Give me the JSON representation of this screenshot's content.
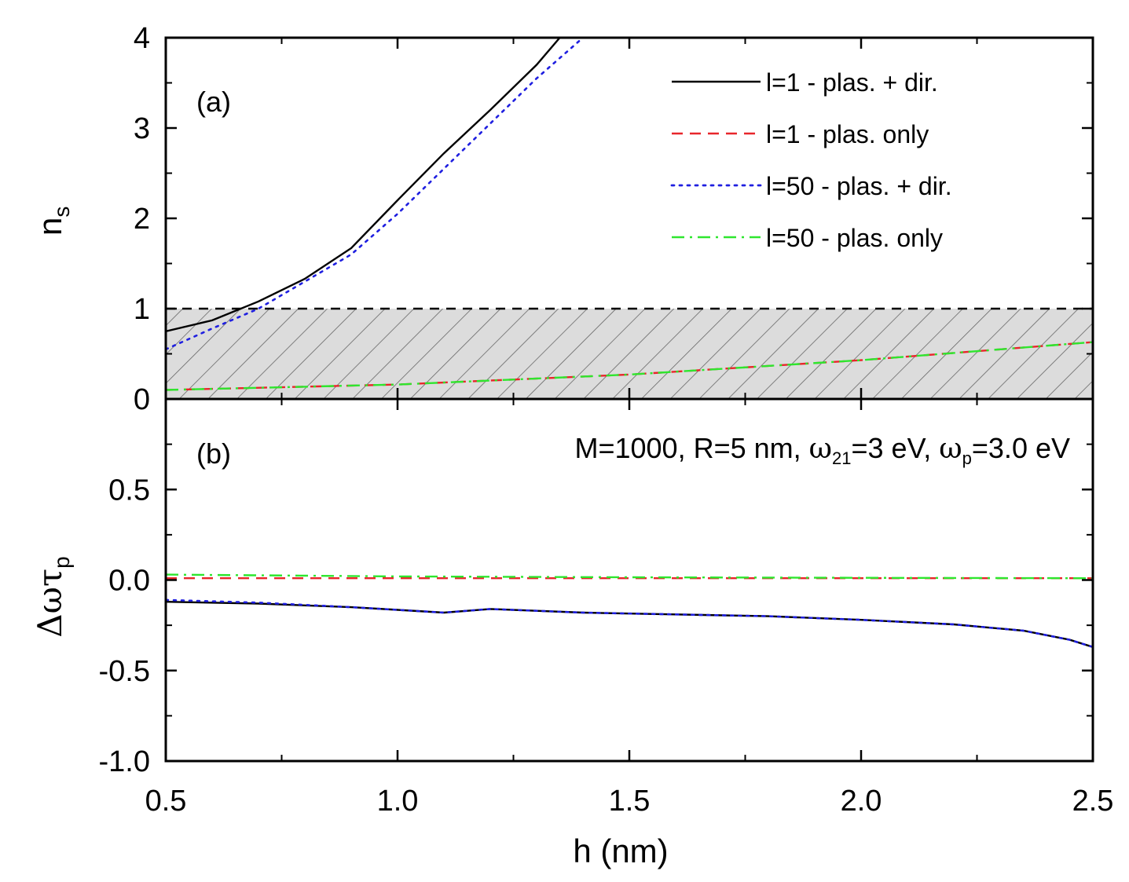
{
  "colors": {
    "black": "#000000",
    "red": "#e8262b",
    "blue": "#1f1fe0",
    "green": "#2ee62e",
    "hatch_fill": "#dcdcdc",
    "hatch_line": "#555555"
  },
  "chart_data": [
    {
      "panel": "a",
      "type": "line",
      "panel_label": "(a)",
      "ylabel": {
        "main": "n",
        "sub": "s"
      },
      "xlim": [
        0.5,
        2.5
      ],
      "ylim": [
        0,
        4
      ],
      "yticks": [
        "0",
        "1",
        "2",
        "3",
        "4"
      ],
      "threshold": {
        "y": 1,
        "style": "dashed",
        "shaded_region": [
          0,
          1
        ],
        "pattern": "hatched"
      },
      "legend_position": "top-right",
      "series": [
        {
          "name": "l=1 - plas. + dir.",
          "style": "solid",
          "color": "#000000",
          "x": [
            0.5,
            0.6,
            0.7,
            0.8,
            0.9,
            1.0,
            1.1,
            1.2,
            1.3,
            1.35
          ],
          "y": [
            0.75,
            0.87,
            1.08,
            1.33,
            1.67,
            2.2,
            2.72,
            3.2,
            3.7,
            4.0
          ]
        },
        {
          "name": "l=1 - plas. only",
          "style": "dashed",
          "color": "#e8262b",
          "x": [
            0.5,
            1.0,
            1.5,
            2.0,
            2.5
          ],
          "y": [
            0.1,
            0.16,
            0.27,
            0.43,
            0.63
          ]
        },
        {
          "name": "l=50 - plas. + dir.",
          "style": "dotted",
          "color": "#1f1fe0",
          "x": [
            0.5,
            0.6,
            0.7,
            0.8,
            0.9,
            1.0,
            1.1,
            1.2,
            1.3,
            1.4
          ],
          "y": [
            0.55,
            0.78,
            1.0,
            1.3,
            1.6,
            2.05,
            2.55,
            3.05,
            3.55,
            4.0
          ]
        },
        {
          "name": "l=50 - plas. only",
          "style": "dash-dot",
          "color": "#2ee62e",
          "x": [
            0.5,
            1.0,
            1.5,
            2.0,
            2.5
          ],
          "y": [
            0.1,
            0.16,
            0.27,
            0.43,
            0.63
          ]
        }
      ]
    },
    {
      "panel": "b",
      "type": "line",
      "panel_label": "(b)",
      "ylabel": "Δωτ",
      "ylabel_sub": "p",
      "annotation": {
        "prefix": "M=1000, R=5 nm, ",
        "omega21_symbol": "ω",
        "omega21_sub": "21",
        "omega21_value": "=3 eV, ",
        "omegap_symbol": "ω",
        "omegap_sub": "p",
        "omegap_value": "=3.0 eV"
      },
      "xlabel": "h (nm)",
      "xlim": [
        0.5,
        2.5
      ],
      "ylim": [
        -1.0,
        1.0
      ],
      "xticks": [
        "0.5",
        "1.0",
        "1.5",
        "2.0",
        "2.5"
      ],
      "yticks": [
        "-1.0",
        "-0.5",
        "0.0",
        "0.5"
      ],
      "series": [
        {
          "name": "l=1 - plas. + dir.",
          "style": "solid",
          "color": "#000000",
          "x": [
            0.5,
            0.7,
            0.9,
            1.0,
            1.1,
            1.2,
            1.4,
            1.6,
            1.8,
            2.0,
            2.2,
            2.35,
            2.45,
            2.5
          ],
          "y": [
            -0.12,
            -0.13,
            -0.15,
            -0.165,
            -0.18,
            -0.16,
            -0.18,
            -0.19,
            -0.2,
            -0.22,
            -0.245,
            -0.28,
            -0.33,
            -0.37
          ]
        },
        {
          "name": "l=1 - plas. only",
          "style": "dashed",
          "color": "#e8262b",
          "x": [
            0.5,
            1.0,
            1.5,
            2.0,
            2.5
          ],
          "y": [
            0.01,
            0.01,
            0.01,
            0.01,
            0.01
          ]
        },
        {
          "name": "l=50 - plas. + dir.",
          "style": "dotted",
          "color": "#1f1fe0",
          "x": [
            0.5,
            0.7,
            0.9,
            1.0,
            1.1,
            1.2,
            1.4,
            1.6,
            1.8,
            2.0,
            2.2,
            2.35,
            2.45,
            2.5
          ],
          "y": [
            -0.11,
            -0.125,
            -0.15,
            -0.165,
            -0.18,
            -0.16,
            -0.18,
            -0.19,
            -0.2,
            -0.22,
            -0.245,
            -0.28,
            -0.33,
            -0.37
          ]
        },
        {
          "name": "l=50 - plas. only",
          "style": "dash-dot",
          "color": "#2ee62e",
          "x": [
            0.5,
            1.0,
            1.5,
            2.0,
            2.5
          ],
          "y": [
            0.03,
            0.02,
            0.015,
            0.012,
            0.01
          ]
        }
      ]
    }
  ]
}
